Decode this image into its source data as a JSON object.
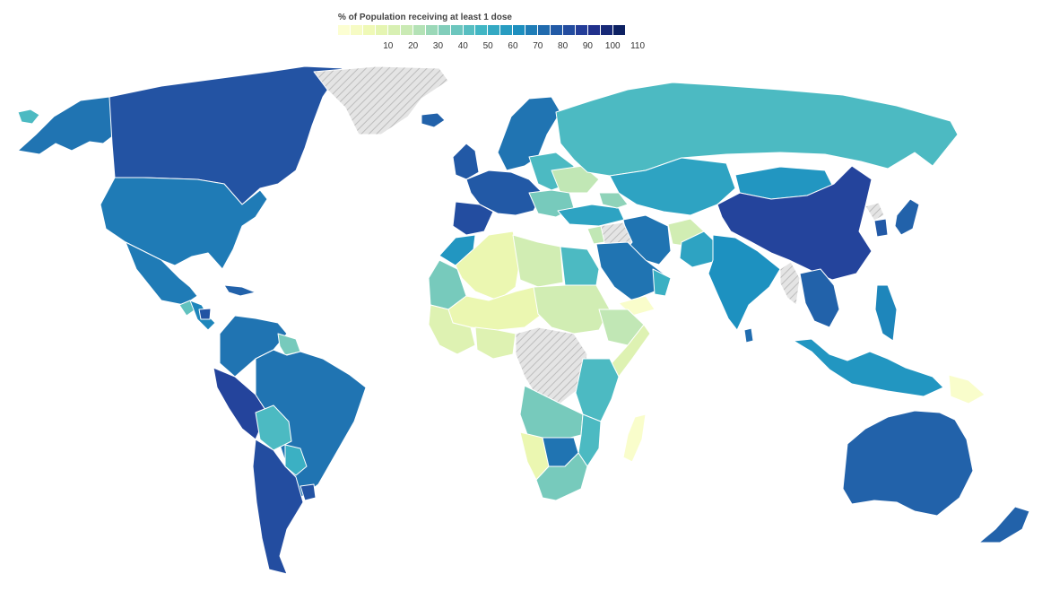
{
  "legend": {
    "title": "% of Population receiving at least 1 dose",
    "ticks": [
      "10",
      "20",
      "30",
      "40",
      "50",
      "60",
      "70",
      "80",
      "90",
      "100",
      "110"
    ],
    "scale": [
      "#ffffd9",
      "#edf8b1",
      "#c7e9b4",
      "#7fcdbb",
      "#41b6c4",
      "#1d91c0",
      "#225ea8",
      "#253494",
      "#081d58"
    ]
  },
  "colors": {
    "no_data_fill": "#e4e4e4",
    "no_data_hatch": "#bdbdbd",
    "border": "#ffffff",
    "background": "#ffffff"
  },
  "regions": [
    {
      "name": "canada",
      "value": 90
    },
    {
      "name": "alaska",
      "value": 80
    },
    {
      "name": "united-states",
      "value": 78
    },
    {
      "name": "mexico",
      "value": 78
    },
    {
      "name": "central-america",
      "value": 75
    },
    {
      "name": "guatemala",
      "value": 50
    },
    {
      "name": "nicaragua",
      "value": 90
    },
    {
      "name": "caribbean",
      "value": 85
    },
    {
      "name": "colombia-venezuela",
      "value": 80
    },
    {
      "name": "guianas",
      "value": 45
    },
    {
      "name": "ecuador-peru",
      "value": 95
    },
    {
      "name": "brazil",
      "value": 80
    },
    {
      "name": "bolivia",
      "value": 55
    },
    {
      "name": "paraguay",
      "value": 60
    },
    {
      "name": "uruguay",
      "value": 90
    },
    {
      "name": "chile-argentina",
      "value": 92
    },
    {
      "name": "greenland",
      "value": null
    },
    {
      "name": "iceland",
      "value": 85
    },
    {
      "name": "uk-ireland",
      "value": 88
    },
    {
      "name": "scandinavia",
      "value": 80
    },
    {
      "name": "western-europe",
      "value": 88
    },
    {
      "name": "iberia",
      "value": 92
    },
    {
      "name": "eastern-europe",
      "value": 55
    },
    {
      "name": "ukraine",
      "value": 30
    },
    {
      "name": "balkans",
      "value": 45
    },
    {
      "name": "turkey",
      "value": 65
    },
    {
      "name": "russia",
      "value": 55
    },
    {
      "name": "kazakhstan-central-asia",
      "value": 65
    },
    {
      "name": "caucasus",
      "value": 40
    },
    {
      "name": "mongolia",
      "value": 70
    },
    {
      "name": "china",
      "value": 95
    },
    {
      "name": "korea",
      "value": 88
    },
    {
      "name": "north-korea",
      "value": null
    },
    {
      "name": "japan",
      "value": 85
    },
    {
      "name": "iran",
      "value": 80
    },
    {
      "name": "afghanistan",
      "value": 25
    },
    {
      "name": "pakistan",
      "value": 65
    },
    {
      "name": "india",
      "value": 72
    },
    {
      "name": "sri-lanka",
      "value": 82
    },
    {
      "name": "southeast-asia",
      "value": 85
    },
    {
      "name": "myanmar",
      "value": null
    },
    {
      "name": "philippines",
      "value": 75
    },
    {
      "name": "indonesia",
      "value": 70
    },
    {
      "name": "papua-new-guinea",
      "value": 5
    },
    {
      "name": "australia",
      "value": 85
    },
    {
      "name": "new-zealand",
      "value": 85
    },
    {
      "name": "arabian-peninsula",
      "value": 80
    },
    {
      "name": "yemen",
      "value": 5
    },
    {
      "name": "oman",
      "value": 60
    },
    {
      "name": "iraq-syria",
      "value": null
    },
    {
      "name": "levant",
      "value": 30
    },
    {
      "name": "egypt",
      "value": 55
    },
    {
      "name": "morocco",
      "value": 70
    },
    {
      "name": "west-sahara-mauritania",
      "value": 45
    },
    {
      "name": "algeria",
      "value": 15
    },
    {
      "name": "libya",
      "value": 25
    },
    {
      "name": "sahel",
      "value": 15
    },
    {
      "name": "chad-sudan",
      "value": 25
    },
    {
      "name": "ethiopia",
      "value": 30
    },
    {
      "name": "somalia",
      "value": 20
    },
    {
      "name": "west-africa",
      "value": 20
    },
    {
      "name": "nigeria",
      "value": 20
    },
    {
      "name": "central-africa-nodata",
      "value": null
    },
    {
      "name": "kenya-tanzania",
      "value": 55
    },
    {
      "name": "angola-zambia",
      "value": 45
    },
    {
      "name": "mozambique",
      "value": 55
    },
    {
      "name": "namibia",
      "value": 15
    },
    {
      "name": "botswana-zimbabwe",
      "value": 80
    },
    {
      "name": "south-africa",
      "value": 45
    },
    {
      "name": "madagascar",
      "value": 5
    },
    {
      "name": "hawaii-chukotka",
      "value": 55
    }
  ]
}
